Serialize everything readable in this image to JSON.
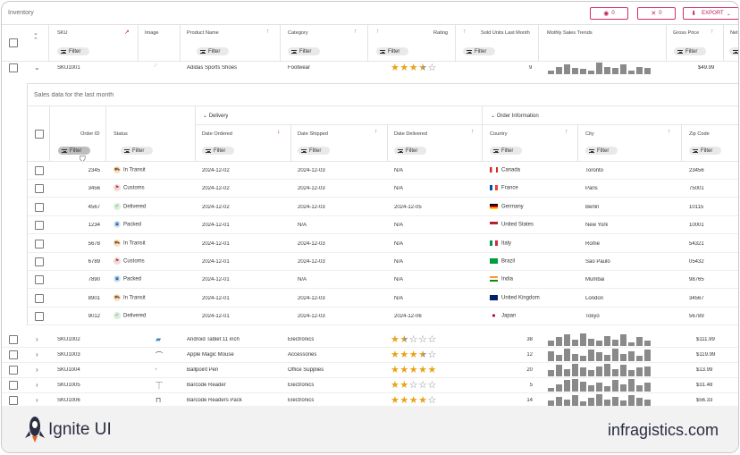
{
  "toolbar": {
    "title": "Inventory",
    "hide_count": "0",
    "pin_count": "0",
    "export_label": "EXPORT"
  },
  "main_headers": {
    "sku": "SKU",
    "image": "Image",
    "product_name": "Product Name",
    "category": "Category",
    "rating": "Rating",
    "sold_units": "Sold Units Last Month",
    "monthly_trends": "Mothly Sales Trends",
    "gross_price": "Gross Price",
    "net": "Net"
  },
  "filter_label": "Filter",
  "expanded_row": {
    "sku": "SKU1001",
    "product": "Adidas Sports Shoes",
    "category": "Footwear",
    "rating": 3.5,
    "sold": "9",
    "price": "$49.99",
    "trend": [
      0.3,
      0.6,
      0.8,
      0.5,
      0.4,
      0.3,
      0.9,
      0.6,
      0.5,
      0.8,
      0.3,
      0.6,
      0.5
    ]
  },
  "detail": {
    "title": "Sales data for the last month",
    "group_delivery": "Delivery",
    "group_order_info": "Order Information",
    "headers": {
      "order_id": "Order ID",
      "status": "Status",
      "date_ordered": "Date Ordered",
      "date_shipped": "Date Shipped",
      "date_delivered": "Date Delivered",
      "country": "Country",
      "city": "City",
      "zip": "Zip Code"
    },
    "rows": [
      {
        "id": "2345",
        "status": "In Transit",
        "ordered": "2024-12-02",
        "shipped": "2024-12-03",
        "delivered": "N/A",
        "country": "Canada",
        "city": "Toronto",
        "zip": "23456",
        "st": "transit"
      },
      {
        "id": "3456",
        "status": "Customs",
        "ordered": "2024-12-02",
        "shipped": "2024-12-03",
        "delivered": "N/A",
        "country": "France",
        "city": "Paris",
        "zip": "75001",
        "st": "customs"
      },
      {
        "id": "4567",
        "status": "Delivered",
        "ordered": "2024-12-02",
        "shipped": "2024-12-03",
        "delivered": "2024-12-05",
        "country": "Germany",
        "city": "Berlin",
        "zip": "10115",
        "st": "delivered"
      },
      {
        "id": "1234",
        "status": "Packed",
        "ordered": "2024-12-01",
        "shipped": "N/A",
        "delivered": "N/A",
        "country": "United States",
        "city": "New York",
        "zip": "10001",
        "st": "packed"
      },
      {
        "id": "5678",
        "status": "In Transit",
        "ordered": "2024-12-01",
        "shipped": "2024-12-03",
        "delivered": "N/A",
        "country": "Italy",
        "city": "Rome",
        "zip": "54321",
        "st": "transit"
      },
      {
        "id": "6789",
        "status": "Customs",
        "ordered": "2024-12-01",
        "shipped": "2024-12-03",
        "delivered": "N/A",
        "country": "Brazil",
        "city": "São Paulo",
        "zip": "05432",
        "st": "customs"
      },
      {
        "id": "7890",
        "status": "Packed",
        "ordered": "2024-12-01",
        "shipped": "N/A",
        "delivered": "N/A",
        "country": "India",
        "city": "Mumbai",
        "zip": "98765",
        "st": "packed"
      },
      {
        "id": "8901",
        "status": "In Transit",
        "ordered": "2024-12-01",
        "shipped": "2024-12-03",
        "delivered": "N/A",
        "country": "United Kingdom",
        "city": "London",
        "zip": "34567",
        "st": "transit"
      },
      {
        "id": "9012",
        "status": "Delivered",
        "ordered": "2024-12-01",
        "shipped": "2024-12-03",
        "delivered": "2024-12-06",
        "country": "Japan",
        "city": "Tokyo",
        "zip": "56789",
        "st": "delivered"
      }
    ]
  },
  "rows": [
    {
      "sku": "SKU1002",
      "product": "Android Tablet 11 inch",
      "category": "Electronics",
      "rating": 1.5,
      "sold": "38",
      "price": "$111.99",
      "trend": [
        0.4,
        0.7,
        0.9,
        0.5,
        1,
        0.6,
        0.4,
        0.8,
        0.5,
        0.9,
        0.3,
        0.7,
        0.4
      ]
    },
    {
      "sku": "SKU1003",
      "product": "Apple Magic Mouse",
      "category": "Accessories",
      "rating": 3.5,
      "sold": "12",
      "price": "$119.99",
      "trend": [
        0.8,
        0.5,
        1,
        0.6,
        0.4,
        0.9,
        0.7,
        0.5,
        1,
        0.6,
        0.8,
        0.4,
        0.9
      ]
    },
    {
      "sku": "SKU1004",
      "product": "Ballpoint Pen",
      "category": "Office Supplies",
      "rating": 5,
      "sold": "20",
      "price": "$13.99",
      "trend": [
        0.5,
        0.9,
        0.6,
        1,
        0.7,
        0.5,
        0.8,
        1,
        0.6,
        0.9,
        0.5,
        0.7,
        0.8
      ]
    },
    {
      "sku": "SKU1005",
      "product": "Barcode Reader",
      "category": "Electronics",
      "rating": 2,
      "sold": "5",
      "price": "$31.48",
      "trend": [
        0.3,
        0.6,
        0.9,
        1,
        0.8,
        0.5,
        0.7,
        0.4,
        0.9,
        0.6,
        1,
        0.5,
        0.7
      ]
    },
    {
      "sku": "SKU1006",
      "product": "Barcode Readers Pack",
      "category": "Electronics",
      "rating": 4,
      "sold": "14",
      "price": "$56.33",
      "trend": [
        0.5,
        0.8,
        0.6,
        0.9,
        0.4,
        0.7,
        1,
        0.6,
        0.8,
        0.5,
        0.9,
        0.7,
        0.6
      ]
    }
  ],
  "footer": {
    "brand": "Ignite UI",
    "site": "infragistics.com"
  },
  "colors": {
    "accent": "#c2185b",
    "star": "#e8a317",
    "footer_bg": "#f2f2f2"
  }
}
